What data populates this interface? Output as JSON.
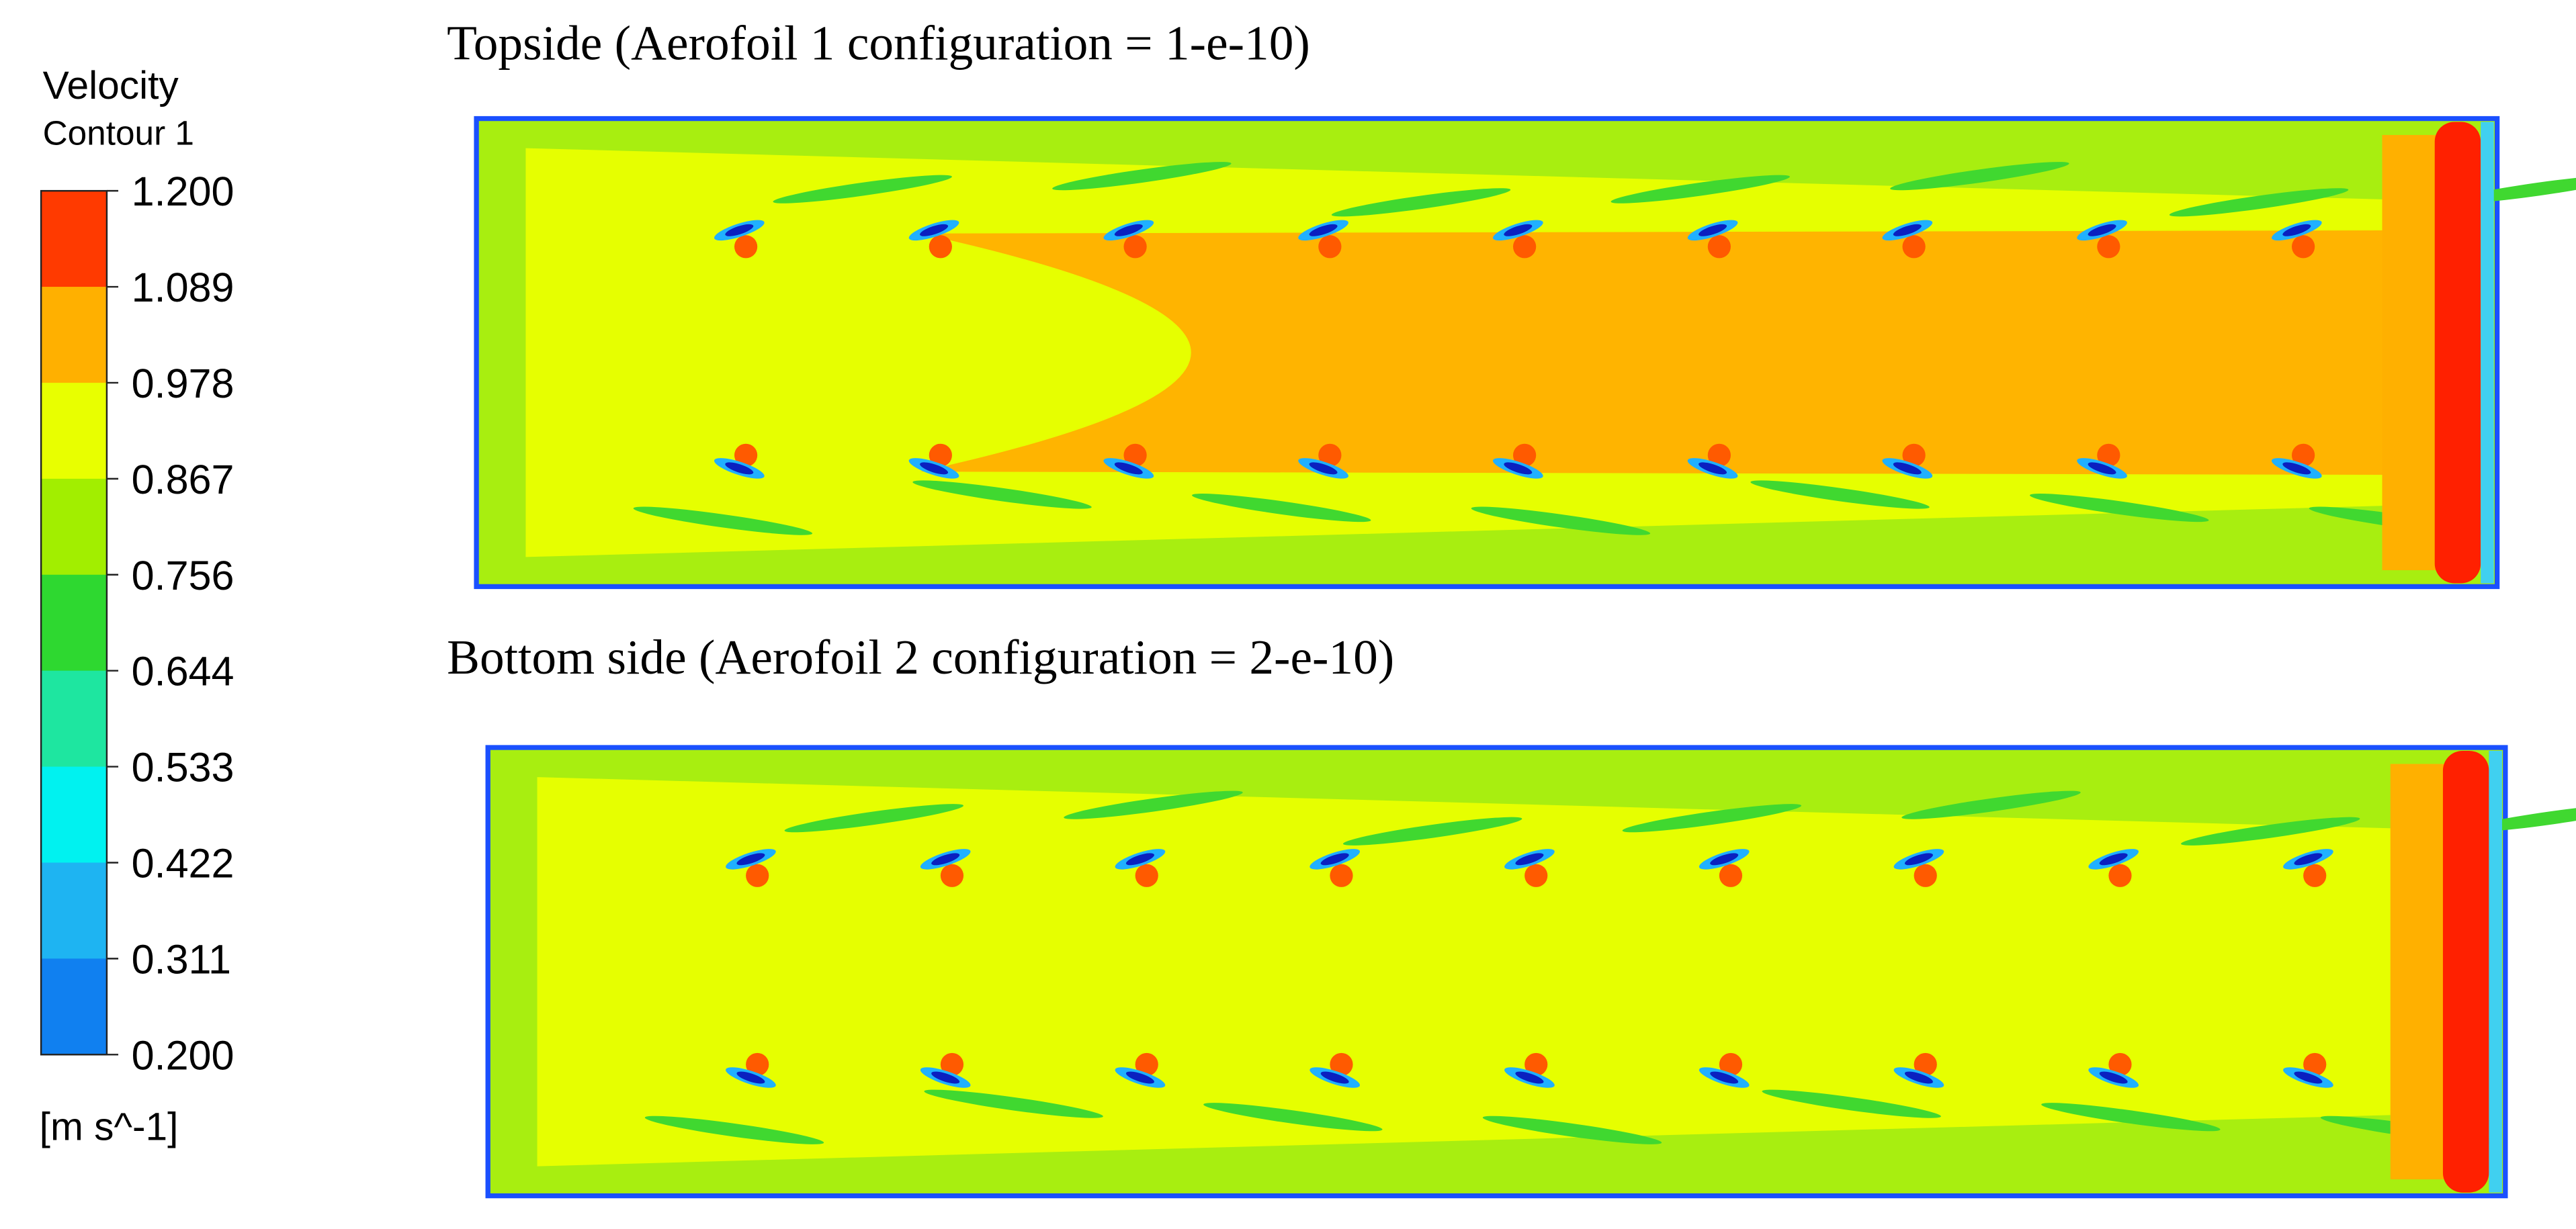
{
  "legend": {
    "title": "Velocity",
    "subtitle": "Contour 1",
    "ticks": [
      "1.200",
      "1.089",
      "0.978",
      "0.867",
      "0.756",
      "0.644",
      "0.533",
      "0.422",
      "0.311",
      "0.200"
    ],
    "unit": "[m s^-1]"
  },
  "panels": [
    {
      "title": "Topside (Aerofoil 1 configuration = 1-e-10)"
    },
    {
      "title": "Bottom side (Aerofoil 2 configuration = 2-e-10)"
    }
  ]
}
